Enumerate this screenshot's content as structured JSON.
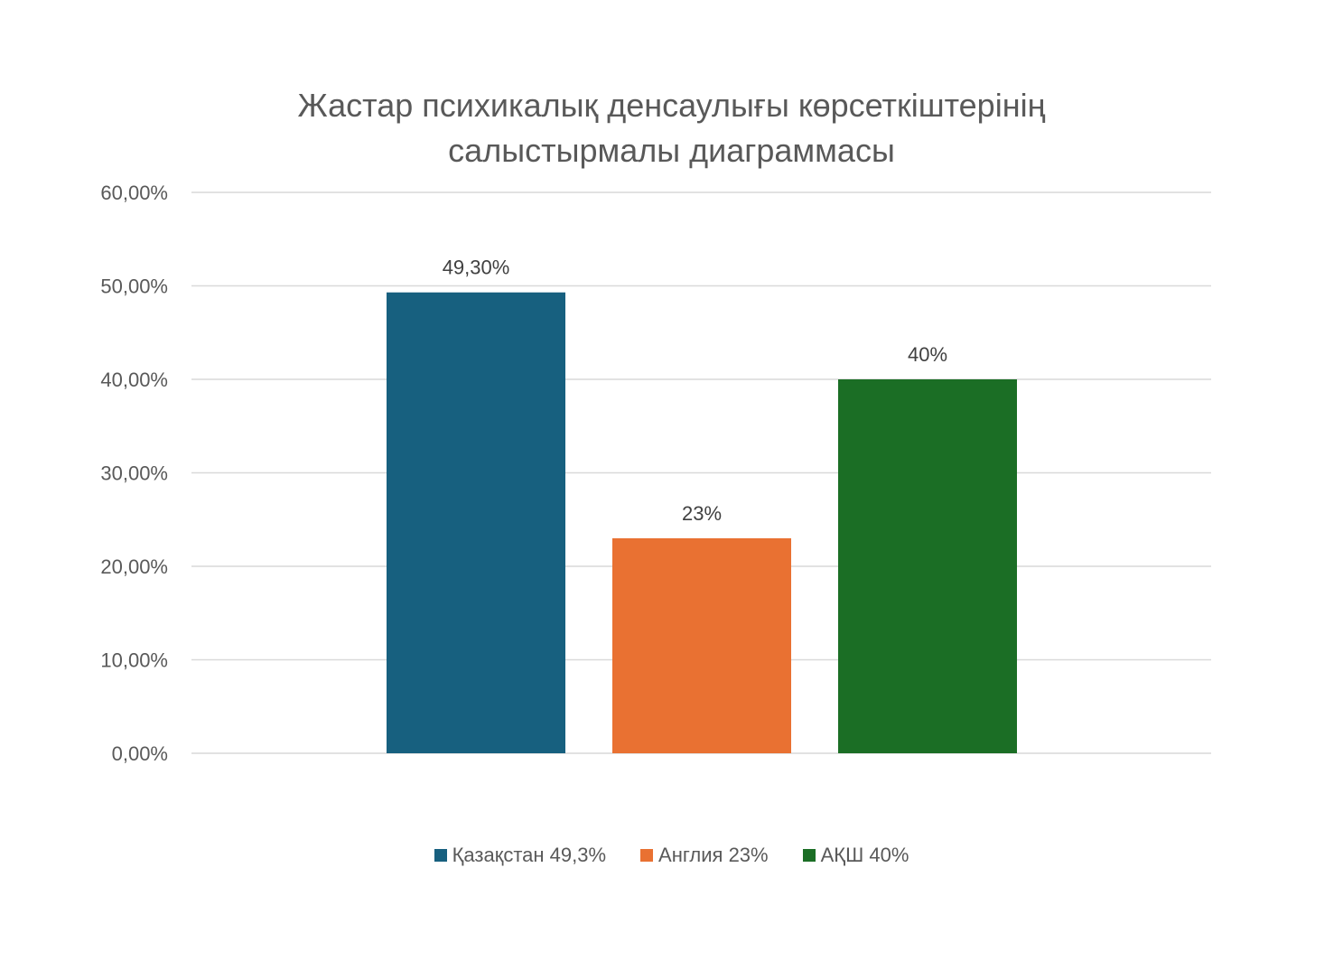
{
  "chart_data": {
    "type": "bar",
    "title_lines": [
      "Жастар психикалық денсаулығы көрсеткіштерінің",
      "салыстырмалы диаграммасы"
    ],
    "xlabel": "",
    "ylabel": "",
    "ylim": [
      0,
      0.6
    ],
    "yticks": [
      {
        "value": 0.6,
        "label": "60,00%"
      },
      {
        "value": 0.5,
        "label": "50,00%"
      },
      {
        "value": 0.4,
        "label": "40,00%"
      },
      {
        "value": 0.3,
        "label": "30,00%"
      },
      {
        "value": 0.2,
        "label": "20,00%"
      },
      {
        "value": 0.1,
        "label": "10,00%"
      },
      {
        "value": 0.0,
        "label": "0,00%"
      }
    ],
    "grid": true,
    "legend_position": "bottom",
    "series": [
      {
        "name": "Қазақстан 49,3%",
        "value": 0.493,
        "data_label": "49,30%",
        "color": "#17607f"
      },
      {
        "name": "Англия 23%",
        "value": 0.23,
        "data_label": "23%",
        "color": "#e97132"
      },
      {
        "name": "АҚШ 40%",
        "value": 0.4,
        "data_label": "40%",
        "color": "#1b6e25"
      }
    ]
  }
}
